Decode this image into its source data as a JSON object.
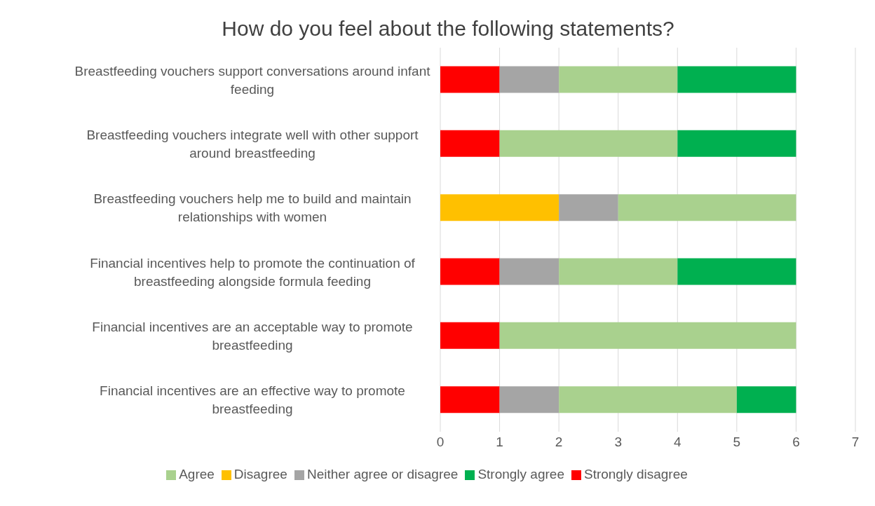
{
  "chart_data": {
    "type": "bar",
    "orientation": "horizontal",
    "stacked": true,
    "title": "How do you feel about the following statements?",
    "categories": [
      "Breastfeeding vouchers support conversations around infant feeding",
      "Breastfeeding vouchers integrate well with other support around breastfeeding",
      "Breastfeeding vouchers help me to build and maintain relationships with women",
      "Financial incentives help to promote the continuation of breastfeeding alongside formula feeding",
      "Financial incentives are an acceptable way to promote breastfeeding",
      "Financial incentives are an effective way to promote breastfeeding"
    ],
    "series": [
      {
        "name": "Strongly disagree",
        "color": "#ff0000",
        "values": [
          1,
          1,
          0,
          1,
          1,
          1
        ]
      },
      {
        "name": "Disagree",
        "color": "#ffc000",
        "values": [
          0,
          0,
          2,
          0,
          0,
          0
        ]
      },
      {
        "name": "Neither agree or disagree",
        "color": "#a5a5a5",
        "values": [
          1,
          0,
          1,
          1,
          0,
          1
        ]
      },
      {
        "name": "Agree",
        "color": "#a9d18e",
        "values": [
          2,
          3,
          3,
          2,
          5,
          3
        ]
      },
      {
        "name": "Strongly agree",
        "color": "#00b050",
        "values": [
          2,
          2,
          0,
          2,
          0,
          1
        ]
      }
    ],
    "xlim": [
      0,
      7
    ],
    "xticks": [
      0,
      1,
      2,
      3,
      4,
      5,
      6,
      7
    ],
    "grid": "x",
    "legend": "bottom"
  }
}
